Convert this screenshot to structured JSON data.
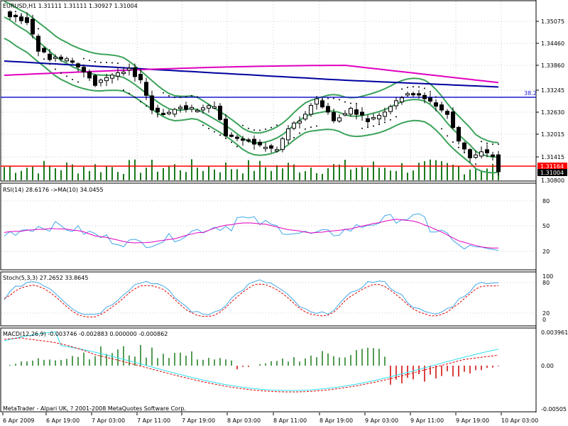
{
  "chart_data": {
    "type": "candlestick",
    "main": {
      "title": "EURUSD,H1",
      "ohlc_text": "1.31111 1.31111 1.30927 1.31004",
      "y_ticks": [
        "1.35075",
        "1.34460",
        "1.33860",
        "1.33245",
        "1.32630",
        "1.32015",
        "1.31415",
        "1.30800"
      ],
      "price_markers": {
        "bid": "1.31164",
        "last": "1.31004"
      },
      "hline_label": "38.2"
    },
    "x_ticks": [
      "6 Apr 2009",
      "6 Apr 19:00",
      "7 Apr 03:00",
      "7 Apr 11:00",
      "7 Apr 19:00",
      "8 Apr 03:00",
      "8 Apr 11:00",
      "8 Apr 19:00",
      "9 Apr 03:00",
      "9 Apr 11:00",
      "9 Apr 19:00",
      "10 Apr 03:00"
    ],
    "rsi": {
      "title": "RSI(14) 28.6176  ->MA(10) 34.0455",
      "y_ticks": [
        "80",
        "50",
        "20"
      ]
    },
    "stoch": {
      "title": "Stoch(5,3,3) 27.2652 33.8645",
      "y_ticks": [
        "100",
        "80",
        "20",
        "0"
      ]
    },
    "macd": {
      "title": "MACD(12,26,9) -0.003746 -0.002883 0.000000 -0.000862",
      "y_ticks": [
        "0.003961",
        "0.00",
        "-0.00505"
      ]
    },
    "colors": {
      "candle": "#000000",
      "bollinger": "#3ca35a",
      "ma_blue": "#0000a0",
      "ma_magenta": "#e000c0",
      "hline_blue": "#1818d0",
      "bid_line": "#ff0000",
      "volume": "#1a7a1a",
      "rsi": "#3fa8e8",
      "rsi_ma": "#e000c0",
      "stoch_main": "#3fa8e8",
      "stoch_signal": "#e00000",
      "macd_pos": "#1a7a1a",
      "macd_neg": "#d00000",
      "macd_line": "#30e0f0"
    }
  },
  "footer": {
    "copyright": "MetaTrader - Alpari UK, ? 2001-2008 MetaQuotes Software Corp."
  }
}
